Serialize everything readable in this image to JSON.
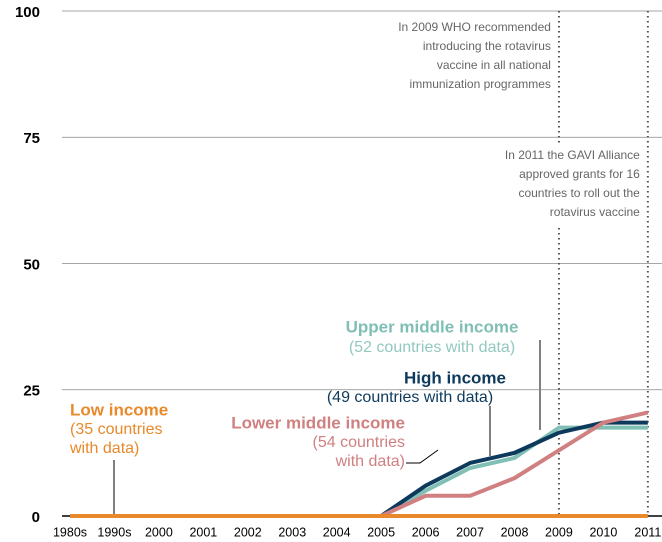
{
  "chart_data": {
    "type": "line",
    "categories": [
      "1980s",
      "1990s",
      "2000",
      "2001",
      "2002",
      "2003",
      "2004",
      "2005",
      "2006",
      "2007",
      "2008",
      "2009",
      "2010",
      "2011"
    ],
    "ylim": [
      0,
      100
    ],
    "yticks": [
      0,
      25,
      50,
      75,
      100
    ],
    "grid": true,
    "series": [
      {
        "name": "Upper middle income",
        "detail_lines": [
          "(52 countries with data)"
        ],
        "color": "#7fbfb4",
        "values": [
          0,
          0,
          0,
          0,
          0,
          0,
          0,
          0,
          5,
          9.5,
          11.5,
          17.5,
          17.5,
          17.5
        ]
      },
      {
        "name": "High income",
        "detail_lines": [
          "(49 countries with data)"
        ],
        "color": "#0d3a5c",
        "values": [
          0,
          0,
          0,
          0,
          0,
          0,
          0,
          0,
          6,
          10.5,
          12.5,
          16.5,
          18.5,
          18.5
        ]
      },
      {
        "name": "Lower middle income",
        "detail_lines": [
          "(54 countries",
          "with data)"
        ],
        "color": "#d08080",
        "values": [
          0,
          0,
          0,
          0,
          0,
          0,
          0,
          0,
          4,
          4,
          7.5,
          13,
          18.5,
          20.5
        ]
      },
      {
        "name": "Low income",
        "detail_lines": [
          "(35 countries",
          "with data)"
        ],
        "color": "#e8892b",
        "values": [
          0,
          0,
          0,
          0,
          0,
          0,
          0,
          0,
          0,
          0,
          0,
          0,
          0,
          0
        ]
      }
    ],
    "annotations": [
      {
        "x": "2009",
        "lines": [
          "In 2009 WHO recommended",
          "introducing the rotavirus",
          "vaccine in all national",
          "immunization programmes"
        ]
      },
      {
        "x": "2011",
        "lines": [
          "In 2011 the GAVI Alliance",
          "approved grants for 16",
          "countries to roll out the",
          "rotavirus vaccine"
        ]
      }
    ]
  }
}
